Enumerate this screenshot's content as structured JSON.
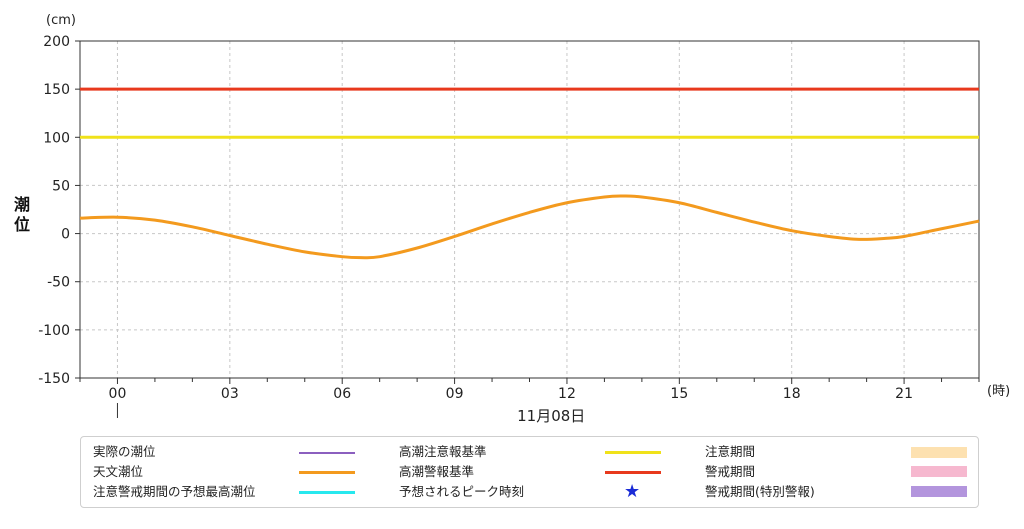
{
  "chart_data": {
    "type": "line",
    "xlabel_unit": "(時)",
    "ylabel_unit": "(cm)",
    "ylabel": "潮位",
    "date_label": "11月08日",
    "ylim": [
      -150,
      200
    ],
    "yticks": [
      200,
      150,
      100,
      50,
      0,
      -50,
      -100,
      -150
    ],
    "ytick_labels": [
      "200",
      "150",
      "100",
      "50",
      "0",
      "-50",
      "-100",
      "-150"
    ],
    "xlim": [
      -1,
      23
    ],
    "xticks": [
      0,
      3,
      6,
      9,
      12,
      15,
      18,
      21
    ],
    "xtick_labels": [
      "00",
      "03",
      "06",
      "09",
      "12",
      "15",
      "18",
      "21"
    ],
    "grid": true,
    "thresholds": [
      {
        "name": "高潮警報基準",
        "value": 150,
        "color": "#e8391d"
      },
      {
        "name": "高潮注意報基準",
        "value": 100,
        "color": "#f0e21a"
      }
    ],
    "series": [
      {
        "name": "天文潮位",
        "color": "#f39a1e",
        "x": [
          -1,
          0,
          1,
          2,
          3,
          4,
          5,
          6,
          6.5,
          7,
          8,
          9,
          10,
          11,
          12,
          13,
          13.5,
          14,
          15,
          16,
          17,
          18,
          19,
          19.8,
          20.5,
          21,
          22,
          23
        ],
        "y": [
          16,
          17,
          14,
          7,
          -2,
          -11,
          -19,
          -24,
          -25,
          -24,
          -15,
          -3,
          10,
          22,
          32,
          38,
          39,
          38,
          32,
          22,
          12,
          3,
          -3,
          -6,
          -5,
          -3,
          5,
          13
        ]
      }
    ]
  },
  "legend": {
    "items": [
      {
        "label": "実際の潮位",
        "kind": "line",
        "color": "#8b5fbf"
      },
      {
        "label": "天文潮位",
        "kind": "line",
        "color": "#f39a1e"
      },
      {
        "label": "注意警戒期間の予想最高潮位",
        "kind": "line",
        "color": "#27e8ee"
      },
      {
        "label": "高潮注意報基準",
        "kind": "line",
        "color": "#f0e21a"
      },
      {
        "label": "高潮警報基準",
        "kind": "line",
        "color": "#e8391d"
      },
      {
        "label": "予想されるピーク時刻",
        "kind": "star",
        "color": "#1a2bd6"
      },
      {
        "label": "注意期間",
        "kind": "rect",
        "color": "#fde1b0"
      },
      {
        "label": "警戒期間",
        "kind": "rect",
        "color": "#f6b8cf"
      },
      {
        "label": "警戒期間(特別警報)",
        "kind": "rect",
        "color": "#b395dd"
      }
    ],
    "star_glyph": "★"
  }
}
